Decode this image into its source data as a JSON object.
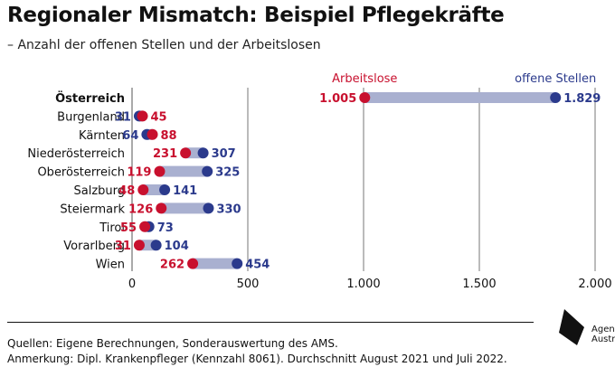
{
  "title": "Regionaler Mismatch: Beispiel Pflegekräfte",
  "subtitle": "– Anzahl der offenen Stellen und der Arbeitslosen",
  "source_lines": [
    "Quellen: Eigene Berechnungen, Sonderauswertung des AMS.",
    "Anmerkung: Dipl. Krankenpfleger (Kennzahl 8061). Durchschnitt August 2021 und Juli 2022."
  ],
  "logo": {
    "line1": "Agenda",
    "line2": "Austria"
  },
  "colors": {
    "arbeitslose": "#c8102e",
    "offene_stellen": "#2b3a8c",
    "connector": "#a9b0d0",
    "grid": "#555555"
  },
  "chart_data": {
    "type": "dumbbell",
    "title": "Regionaler Mismatch: Beispiel Pflegekräfte",
    "subtitle": "– Anzahl der offenen Stellen und der Arbeitslosen",
    "categories": [
      "Österreich",
      "Burgenland",
      "Kärnten",
      "Niederösterreich",
      "Oberösterreich",
      "Salzburg",
      "Steiermark",
      "Tirol",
      "Vorarlberg",
      "Wien"
    ],
    "series": [
      {
        "name": "Arbeitslose",
        "color": "#c8102e",
        "values": [
          1005,
          45,
          88,
          231,
          119,
          48,
          126,
          55,
          31,
          262
        ],
        "labels": [
          "1.005",
          "45",
          "88",
          "231",
          "119",
          "48",
          "126",
          "55",
          "31",
          "262"
        ]
      },
      {
        "name": "offene Stellen",
        "color": "#2b3a8c",
        "values": [
          1829,
          31,
          64,
          307,
          325,
          141,
          330,
          73,
          104,
          454
        ],
        "labels": [
          "1.829",
          "31",
          "64",
          "307",
          "325",
          "141",
          "330",
          "73",
          "104",
          "454"
        ]
      }
    ],
    "xlim": [
      0,
      2000
    ],
    "xticks": [
      0,
      500,
      1000,
      1500,
      2000
    ],
    "xtick_labels": [
      "0",
      "500",
      "1.000",
      "1.500",
      "2.000"
    ],
    "bold_category": "Österreich",
    "grid": true,
    "legend": "annotations above first row"
  }
}
